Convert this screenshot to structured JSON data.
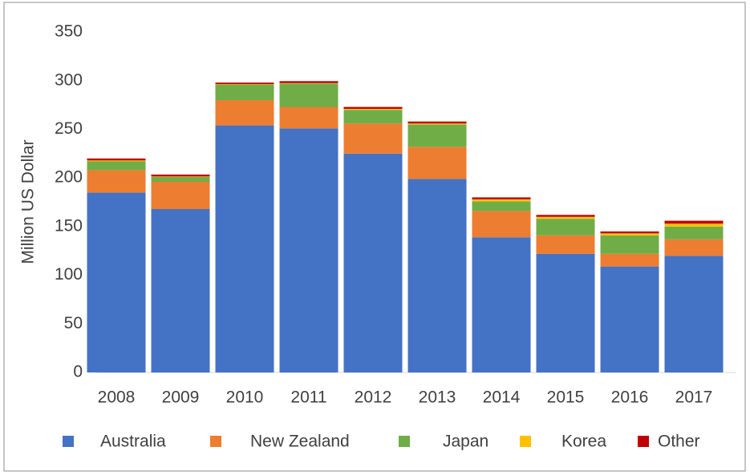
{
  "chart_data": {
    "type": "stacked_bar",
    "y_label": "Million US Dollar",
    "categories": [
      "2008",
      "2009",
      "2010",
      "2011",
      "2012",
      "2013",
      "2014",
      "2015",
      "2016",
      "2017"
    ],
    "series": [
      {
        "name": "Australia",
        "color": "#4472c4",
        "values": [
          185,
          168,
          254,
          251,
          225,
          199,
          139,
          122,
          109,
          120
        ]
      },
      {
        "name": "New Zealand",
        "color": "#ed7d31",
        "values": [
          23,
          28,
          26,
          22,
          31,
          33,
          27,
          19,
          13,
          17
        ]
      },
      {
        "name": "Japan",
        "color": "#70ad47",
        "values": [
          9,
          5,
          16,
          24,
          14,
          23,
          10,
          17,
          19,
          13
        ]
      },
      {
        "name": "Korea",
        "color": "#ffc000",
        "values": [
          1,
          0.5,
          0.5,
          0.5,
          1,
          1,
          2,
          2,
          2,
          3
        ]
      },
      {
        "name": "Other",
        "color": "#c00000",
        "values": [
          2,
          2,
          1.5,
          2,
          2,
          2,
          2,
          2,
          2,
          3
        ]
      }
    ],
    "ylim": [
      0,
      350
    ],
    "yticks": [
      0,
      50,
      100,
      150,
      200,
      250,
      300,
      350
    ],
    "grid": false,
    "legend": "bottom"
  }
}
